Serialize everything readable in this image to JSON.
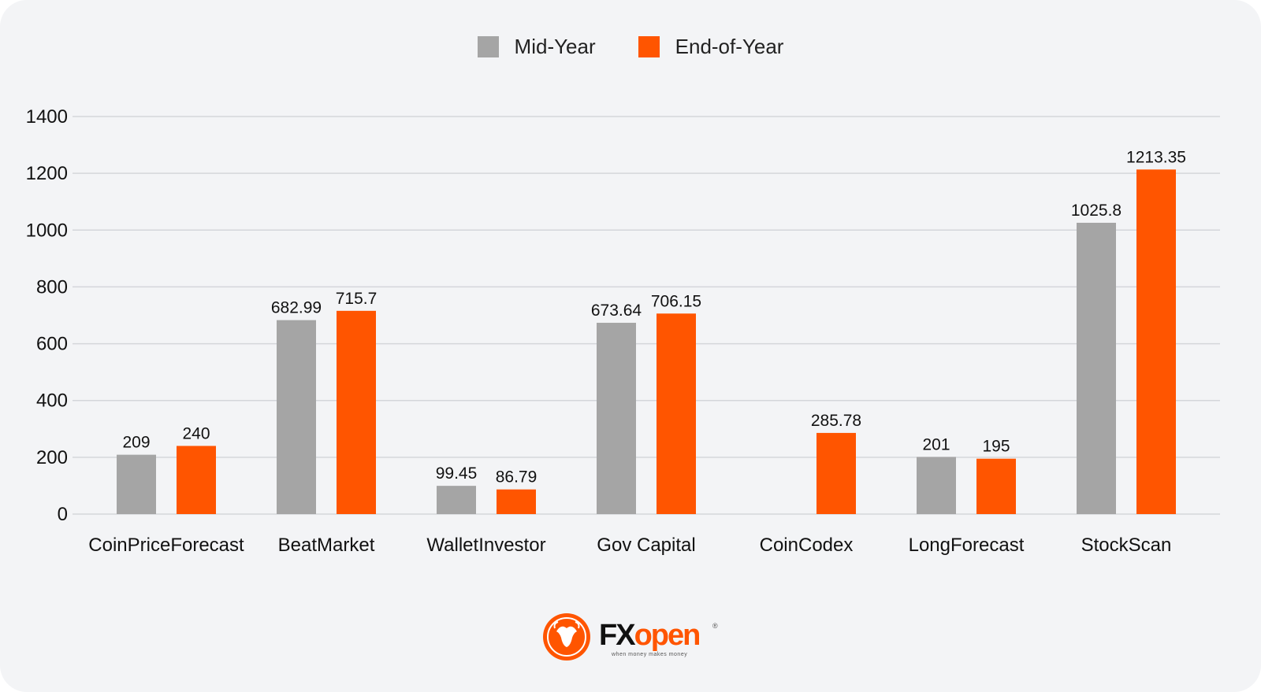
{
  "legend": [
    {
      "label": "Mid-Year",
      "color": "#a5a5a5"
    },
    {
      "label": "End-of-Year",
      "color": "#ff5500"
    }
  ],
  "chart_data": {
    "type": "bar",
    "categories": [
      "CoinPriceForecast",
      "BeatMarket",
      "WalletInvestor",
      "Gov Capital",
      "CoinCodex",
      "LongForecast",
      "StockScan"
    ],
    "series": [
      {
        "name": "Mid-Year",
        "color": "#a5a5a5",
        "values": [
          209,
          682.99,
          99.45,
          673.64,
          null,
          201,
          1025.8
        ],
        "labels": [
          "209",
          "682.99",
          "99.45",
          "673.64",
          "",
          "201",
          "1025.8"
        ]
      },
      {
        "name": "End-of-Year",
        "color": "#ff5500",
        "values": [
          240,
          715.7,
          86.79,
          706.15,
          285.78,
          195,
          1213.35
        ],
        "labels": [
          "240",
          "715.7",
          "86.79",
          "706.15",
          "285.78",
          "195",
          "1213.35"
        ]
      }
    ],
    "yticks": [
      0,
      200,
      400,
      600,
      800,
      1000,
      1200,
      1400
    ],
    "ylim": [
      0,
      1400
    ],
    "grid": true,
    "legend_position": "top-center"
  },
  "logo": {
    "fx": "FX",
    "open": "open",
    "tagline": "when money makes money",
    "reg": "®"
  }
}
